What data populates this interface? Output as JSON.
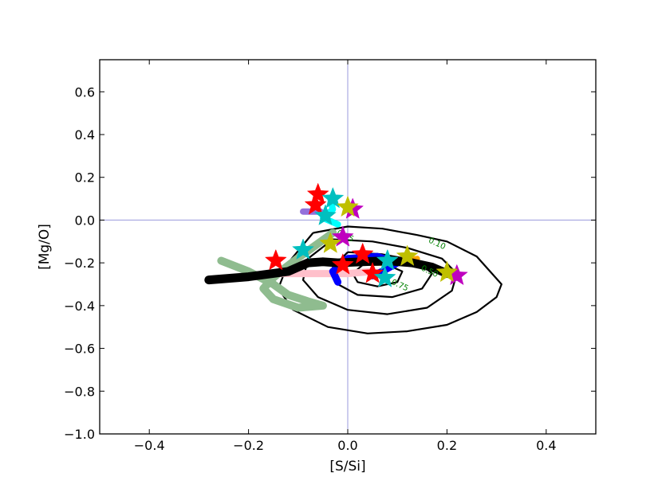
{
  "chart_data": {
    "type": "scatter",
    "title": "",
    "xlabel": "[S/Si]",
    "ylabel": "[Mg/O]",
    "xlim": [
      -0.5,
      0.5
    ],
    "ylim": [
      -1.0,
      0.75
    ],
    "xticks": [
      -0.4,
      -0.2,
      0.0,
      0.2,
      0.4
    ],
    "xtick_labels": [
      "−0.4",
      "−0.2",
      "0.0",
      "0.2",
      "0.4"
    ],
    "yticks": [
      -1.0,
      -0.8,
      -0.6,
      -0.4,
      -0.2,
      0.0,
      0.2,
      0.4,
      0.6
    ],
    "ytick_labels": [
      "−1.0",
      "−0.8",
      "−0.6",
      "−0.4",
      "−0.2",
      "0.0",
      "0.2",
      "0.4",
      "0.6"
    ],
    "grid": false,
    "reference_lines": {
      "x": 0.0,
      "y": 0.0,
      "color": "#9999dd"
    },
    "contours": [
      {
        "label": "0.10",
        "label_at": [
          0.18,
          -0.11
        ],
        "points": [
          [
            -0.07,
            -0.06
          ],
          [
            0.0,
            -0.03
          ],
          [
            0.07,
            -0.04
          ],
          [
            0.14,
            -0.07
          ],
          [
            0.2,
            -0.1
          ],
          [
            0.26,
            -0.17
          ],
          [
            0.31,
            -0.3
          ],
          [
            0.3,
            -0.36
          ],
          [
            0.26,
            -0.43
          ],
          [
            0.2,
            -0.49
          ],
          [
            0.12,
            -0.52
          ],
          [
            0.04,
            -0.53
          ],
          [
            -0.04,
            -0.5
          ],
          [
            -0.11,
            -0.42
          ],
          [
            -0.14,
            -0.32
          ],
          [
            -0.12,
            -0.2
          ],
          [
            -0.07,
            -0.06
          ]
        ]
      },
      {
        "label": "0.25",
        "label_at": [
          -0.005,
          -0.075
        ],
        "points": [
          [
            -0.03,
            -0.09
          ],
          [
            0.05,
            -0.1
          ],
          [
            0.12,
            -0.13
          ],
          [
            0.19,
            -0.18
          ],
          [
            0.22,
            -0.25
          ],
          [
            0.21,
            -0.33
          ],
          [
            0.16,
            -0.41
          ],
          [
            0.08,
            -0.44
          ],
          [
            0.0,
            -0.42
          ],
          [
            -0.06,
            -0.36
          ],
          [
            -0.09,
            -0.28
          ],
          [
            -0.08,
            -0.18
          ],
          [
            -0.03,
            -0.09
          ]
        ]
      },
      {
        "label": "0.50",
        "label_at": [
          0.165,
          -0.24
        ],
        "points": [
          [
            0.0,
            -0.15
          ],
          [
            0.07,
            -0.16
          ],
          [
            0.14,
            -0.19
          ],
          [
            0.17,
            -0.25
          ],
          [
            0.15,
            -0.32
          ],
          [
            0.09,
            -0.36
          ],
          [
            0.02,
            -0.35
          ],
          [
            -0.02,
            -0.3
          ],
          [
            -0.03,
            -0.22
          ],
          [
            0.0,
            -0.15
          ]
        ]
      },
      {
        "label": "0.75",
        "label_at": [
          0.105,
          -0.305
        ],
        "points": [
          [
            0.03,
            -0.21
          ],
          [
            0.08,
            -0.21
          ],
          [
            0.11,
            -0.24
          ],
          [
            0.1,
            -0.29
          ],
          [
            0.06,
            -0.31
          ],
          [
            0.02,
            -0.29
          ],
          [
            0.01,
            -0.25
          ],
          [
            0.03,
            -0.21
          ]
        ]
      }
    ],
    "tracks": [
      {
        "color": "#8fbc8f",
        "width": 10,
        "points": [
          [
            -0.255,
            -0.19
          ],
          [
            -0.2,
            -0.24
          ],
          [
            -0.15,
            -0.3
          ],
          [
            -0.12,
            -0.35
          ],
          [
            -0.08,
            -0.38
          ],
          [
            -0.05,
            -0.4
          ],
          [
            -0.1,
            -0.41
          ],
          [
            -0.15,
            -0.37
          ],
          [
            -0.17,
            -0.32
          ],
          [
            -0.15,
            -0.27
          ],
          [
            -0.13,
            -0.23
          ],
          [
            -0.09,
            -0.16
          ],
          [
            -0.06,
            -0.11
          ],
          [
            -0.03,
            -0.06
          ]
        ]
      },
      {
        "color": "#ffc0cb",
        "width": 9,
        "points": [
          [
            -0.15,
            -0.25
          ],
          [
            -0.08,
            -0.25
          ],
          [
            0.0,
            -0.25
          ],
          [
            0.05,
            -0.24
          ]
        ]
      },
      {
        "color": "#0000ff",
        "width": 9,
        "points": [
          [
            -0.02,
            -0.29
          ],
          [
            -0.03,
            -0.24
          ],
          [
            0.0,
            -0.18
          ],
          [
            0.06,
            -0.17
          ],
          [
            0.1,
            -0.2
          ],
          [
            0.07,
            -0.24
          ],
          [
            0.05,
            -0.26
          ]
        ]
      },
      {
        "color": "#ffa500",
        "width": 7,
        "points": [
          [
            0.04,
            -0.2
          ],
          [
            0.09,
            -0.2
          ],
          [
            0.14,
            -0.18
          ]
        ]
      },
      {
        "color": "#000000",
        "width": 11,
        "points": [
          [
            -0.28,
            -0.28
          ],
          [
            -0.2,
            -0.265
          ],
          [
            -0.12,
            -0.24
          ],
          [
            -0.08,
            -0.2
          ],
          [
            -0.05,
            -0.195
          ],
          [
            -0.02,
            -0.2
          ],
          [
            0.03,
            -0.195
          ],
          [
            0.08,
            -0.19
          ],
          [
            0.13,
            -0.2
          ],
          [
            0.17,
            -0.22
          ],
          [
            0.2,
            -0.25
          ]
        ]
      },
      {
        "color": "#9370db",
        "width": 8,
        "points": [
          [
            -0.055,
            0.04
          ],
          [
            -0.09,
            0.04
          ]
        ]
      },
      {
        "color": "#00ffff",
        "width": 8,
        "points": [
          [
            -0.035,
            0.1
          ],
          [
            -0.03,
            0.05
          ],
          [
            -0.05,
            0.01
          ],
          [
            -0.02,
            -0.02
          ]
        ]
      }
    ],
    "stars": [
      {
        "x": -0.06,
        "y": 0.12,
        "color": "#ff0000"
      },
      {
        "x": -0.065,
        "y": 0.07,
        "color": "#ff0000"
      },
      {
        "x": -0.145,
        "y": -0.19,
        "color": "#ff0000"
      },
      {
        "x": -0.01,
        "y": -0.21,
        "color": "#ff0000"
      },
      {
        "x": 0.03,
        "y": -0.16,
        "color": "#ff0000"
      },
      {
        "x": 0.05,
        "y": -0.25,
        "color": "#ff0000"
      },
      {
        "x": -0.03,
        "y": 0.1,
        "color": "#00bfbf"
      },
      {
        "x": -0.045,
        "y": 0.02,
        "color": "#00bfbf"
      },
      {
        "x": -0.09,
        "y": -0.14,
        "color": "#00bfbf"
      },
      {
        "x": 0.08,
        "y": -0.19,
        "color": "#00bfbf"
      },
      {
        "x": 0.075,
        "y": -0.27,
        "color": "#00bfbf"
      },
      {
        "x": 0.01,
        "y": 0.05,
        "color": "#bf00bf"
      },
      {
        "x": 0.22,
        "y": -0.26,
        "color": "#bf00bf"
      },
      {
        "x": -0.01,
        "y": -0.08,
        "color": "#bf00bf"
      },
      {
        "x": 0.0,
        "y": 0.06,
        "color": "#bfbf00"
      },
      {
        "x": -0.035,
        "y": -0.11,
        "color": "#bfbf00"
      },
      {
        "x": 0.12,
        "y": -0.17,
        "color": "#bfbf00"
      },
      {
        "x": 0.2,
        "y": -0.245,
        "color": "#bfbf00"
      }
    ]
  }
}
